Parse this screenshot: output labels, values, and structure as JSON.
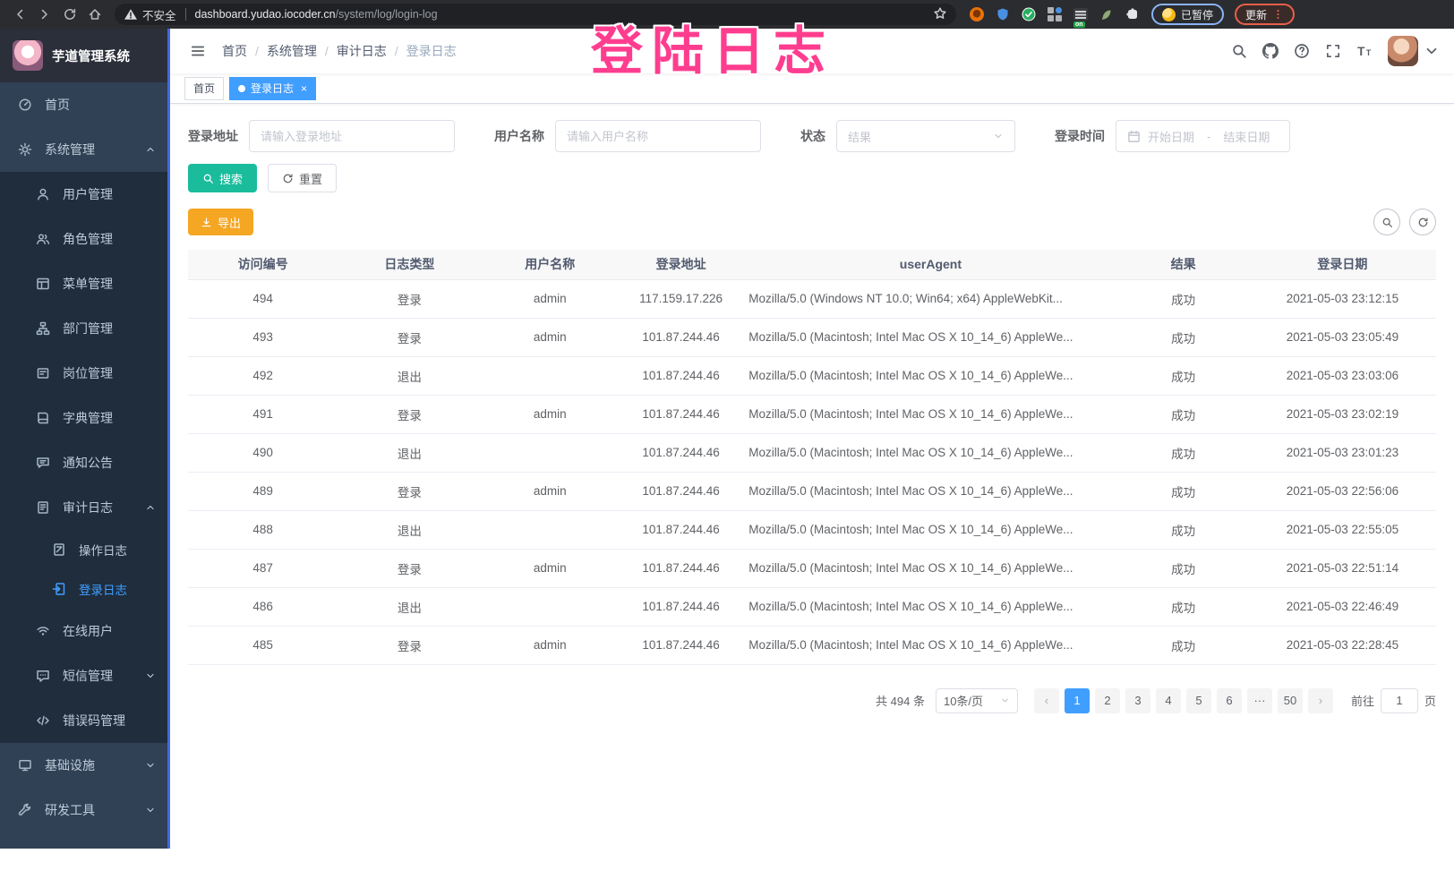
{
  "browser": {
    "security_label": "不安全",
    "url_host": "dashboard.yudao.iocoder.cn",
    "url_path": "/system/log/login-log",
    "profile_chip": "已暂停",
    "update_button": "更新"
  },
  "annotation": {
    "text": "登陆日志",
    "color": "#ff3d8f"
  },
  "sidebar": {
    "title": "芋道管理系统",
    "items": [
      {
        "name": "home",
        "label": "首页",
        "icon": "dashboard-icon",
        "level": 1
      },
      {
        "name": "system-management",
        "label": "系统管理",
        "icon": "gear-icon",
        "level": 1,
        "arrow": "up"
      },
      {
        "name": "user-management",
        "label": "用户管理",
        "icon": "user-icon",
        "level": 2
      },
      {
        "name": "role-management",
        "label": "角色管理",
        "icon": "roles-icon",
        "level": 2
      },
      {
        "name": "menu-management",
        "label": "菜单管理",
        "icon": "menu-tree-icon",
        "level": 2
      },
      {
        "name": "department-management",
        "label": "部门管理",
        "icon": "org-tree-icon",
        "level": 2
      },
      {
        "name": "post-management",
        "label": "岗位管理",
        "icon": "post-icon",
        "level": 2
      },
      {
        "name": "dict-management",
        "label": "字典管理",
        "icon": "dict-icon",
        "level": 2
      },
      {
        "name": "notice",
        "label": "通知公告",
        "icon": "notice-icon",
        "level": 2
      },
      {
        "name": "audit-log",
        "label": "审计日志",
        "icon": "audit-log-icon",
        "level": 2,
        "arrow": "up"
      },
      {
        "name": "operate-log",
        "label": "操作日志",
        "icon": "operate-log-icon",
        "level": 3
      },
      {
        "name": "login-log",
        "label": "登录日志",
        "icon": "login-log-icon",
        "level": 3,
        "active": true
      },
      {
        "name": "online-users",
        "label": "在线用户",
        "icon": "online-icon",
        "level": 2
      },
      {
        "name": "sms-management",
        "label": "短信管理",
        "icon": "sms-icon",
        "level": 2,
        "arrow": "down"
      },
      {
        "name": "error-code-management",
        "label": "错误码管理",
        "icon": "error-code-icon",
        "level": 2
      },
      {
        "name": "infrastructure",
        "label": "基础设施",
        "icon": "infra-icon",
        "level": 1,
        "arrow": "down"
      },
      {
        "name": "dev-tools",
        "label": "研发工具",
        "icon": "tools-icon",
        "level": 1,
        "arrow": "down"
      }
    ]
  },
  "breadcrumb": [
    "首页",
    "系统管理",
    "审计日志",
    "登录日志"
  ],
  "tags": [
    {
      "label": "首页",
      "active": false,
      "closable": false
    },
    {
      "label": "登录日志",
      "active": true,
      "closable": true
    }
  ],
  "filters": {
    "login_address_label": "登录地址",
    "login_address_placeholder": "请输入登录地址",
    "username_label": "用户名称",
    "username_placeholder": "请输入用户名称",
    "status_label": "状态",
    "status_placeholder": "结果",
    "login_time_label": "登录时间",
    "date_start_placeholder": "开始日期",
    "date_separator": "-",
    "date_end_placeholder": "结束日期",
    "search_button": "搜索",
    "reset_button": "重置"
  },
  "toolbar": {
    "export_button": "导出"
  },
  "table": {
    "columns": [
      "访问编号",
      "日志类型",
      "用户名称",
      "登录地址",
      "userAgent",
      "结果",
      "登录日期"
    ],
    "rows": [
      [
        "494",
        "登录",
        "admin",
        "117.159.17.226",
        "Mozilla/5.0 (Windows NT 10.0; Win64; x64) AppleWebKit...",
        "成功",
        "2021-05-03 23:12:15"
      ],
      [
        "493",
        "登录",
        "admin",
        "101.87.244.46",
        "Mozilla/5.0 (Macintosh; Intel Mac OS X 10_14_6) AppleWe...",
        "成功",
        "2021-05-03 23:05:49"
      ],
      [
        "492",
        "退出",
        "",
        "101.87.244.46",
        "Mozilla/5.0 (Macintosh; Intel Mac OS X 10_14_6) AppleWe...",
        "成功",
        "2021-05-03 23:03:06"
      ],
      [
        "491",
        "登录",
        "admin",
        "101.87.244.46",
        "Mozilla/5.0 (Macintosh; Intel Mac OS X 10_14_6) AppleWe...",
        "成功",
        "2021-05-03 23:02:19"
      ],
      [
        "490",
        "退出",
        "",
        "101.87.244.46",
        "Mozilla/5.0 (Macintosh; Intel Mac OS X 10_14_6) AppleWe...",
        "成功",
        "2021-05-03 23:01:23"
      ],
      [
        "489",
        "登录",
        "admin",
        "101.87.244.46",
        "Mozilla/5.0 (Macintosh; Intel Mac OS X 10_14_6) AppleWe...",
        "成功",
        "2021-05-03 22:56:06"
      ],
      [
        "488",
        "退出",
        "",
        "101.87.244.46",
        "Mozilla/5.0 (Macintosh; Intel Mac OS X 10_14_6) AppleWe...",
        "成功",
        "2021-05-03 22:55:05"
      ],
      [
        "487",
        "登录",
        "admin",
        "101.87.244.46",
        "Mozilla/5.0 (Macintosh; Intel Mac OS X 10_14_6) AppleWe...",
        "成功",
        "2021-05-03 22:51:14"
      ],
      [
        "486",
        "退出",
        "",
        "101.87.244.46",
        "Mozilla/5.0 (Macintosh; Intel Mac OS X 10_14_6) AppleWe...",
        "成功",
        "2021-05-03 22:46:49"
      ],
      [
        "485",
        "登录",
        "admin",
        "101.87.244.46",
        "Mozilla/5.0 (Macintosh; Intel Mac OS X 10_14_6) AppleWe...",
        "成功",
        "2021-05-03 22:28:45"
      ]
    ]
  },
  "pagination": {
    "total_text": "共 494 条",
    "page_size": "10条/页",
    "pages": [
      "1",
      "2",
      "3",
      "4",
      "5",
      "6",
      "···",
      "50"
    ],
    "active_page": "1",
    "jump_label": "前往",
    "jump_value": "1",
    "jump_unit": "页"
  },
  "colors": {
    "accent": "#409eff",
    "search_button": "#1abc9c",
    "export_button": "#f5a623",
    "sidebar_bg": "#304156",
    "submenu_bg": "#1f2d3d",
    "annotation": "#ff3d8f"
  }
}
